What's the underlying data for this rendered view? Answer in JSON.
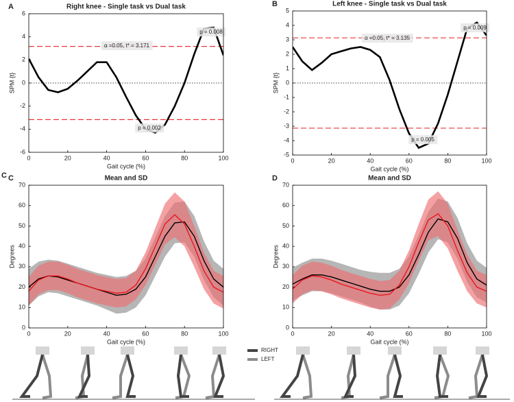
{
  "chart_data": [
    {
      "type": "line",
      "panel_label": "A",
      "title": "Right knee - Single task vs Dual task",
      "x_label": "Gait cycle (%)",
      "y_label": "SPM {t}",
      "x": [
        0,
        5,
        10,
        15,
        20,
        25,
        30,
        35,
        40,
        45,
        50,
        55,
        60,
        65,
        70,
        75,
        80,
        85,
        90,
        95,
        100
      ],
      "series": [
        {
          "color": "#000000",
          "values": [
            2.1,
            0.5,
            -0.6,
            -0.8,
            -0.5,
            0.2,
            1.0,
            1.8,
            1.8,
            0.5,
            -1.2,
            -2.8,
            -4.0,
            -4.3,
            -3.6,
            -2.0,
            0.0,
            2.5,
            4.7,
            4.8,
            2.4
          ]
        }
      ],
      "threshold": 3.171,
      "threshold_color": "#e8373a",
      "zero_line": true,
      "annotations": [
        "α =0.05,    t* = 3.171",
        "p = 0.008",
        "p = 0.002"
      ],
      "xlim": [
        0,
        100
      ],
      "xticks": [
        0,
        20,
        40,
        60,
        80,
        100
      ],
      "ylim": [
        -6,
        6
      ],
      "yticks": [
        -6,
        -4,
        -2,
        0,
        2,
        4,
        6
      ]
    },
    {
      "type": "line",
      "panel_label": "B",
      "title": "Left knee - Single task vs Dual task",
      "x_label": "Gait cycle (%)",
      "y_label": "SPM {t}",
      "x": [
        0,
        5,
        10,
        15,
        20,
        25,
        30,
        35,
        40,
        45,
        50,
        55,
        60,
        65,
        70,
        75,
        80,
        85,
        90,
        95,
        100
      ],
      "series": [
        {
          "color": "#000000",
          "values": [
            2.5,
            1.5,
            0.9,
            1.4,
            2.0,
            2.2,
            2.4,
            2.5,
            2.3,
            1.8,
            0.2,
            -1.8,
            -3.5,
            -4.5,
            -4.2,
            -2.8,
            -0.8,
            1.5,
            3.8,
            4.2,
            3.3
          ]
        }
      ],
      "threshold": 3.135,
      "threshold_color": "#e8373a",
      "zero_line": true,
      "annotations": [
        "α =0.05,    t* = 3.135",
        "p = 0.009",
        "p = 0.005"
      ],
      "xlim": [
        0,
        100
      ],
      "xticks": [
        0,
        20,
        40,
        60,
        80,
        100
      ],
      "ylim": [
        -5,
        5
      ],
      "yticks": [
        -5,
        -4,
        -3,
        -2,
        -1,
        0,
        1,
        2,
        3,
        4,
        5
      ]
    },
    {
      "type": "line",
      "outer_label": "C",
      "panel_label": "C",
      "title": "Mean and SD",
      "x_label": "Gait cycle (%)",
      "y_label": "Degrees",
      "x": [
        0,
        5,
        10,
        15,
        20,
        25,
        30,
        35,
        40,
        45,
        50,
        55,
        60,
        65,
        70,
        75,
        80,
        85,
        90,
        95,
        100
      ],
      "series": [
        {
          "color": "#000000",
          "band_color": "#a9a9a9",
          "values": [
            20,
            24,
            25.5,
            25,
            23.5,
            22,
            20.5,
            19,
            17.5,
            16,
            16.5,
            19,
            25,
            35,
            45,
            51.5,
            52,
            45,
            33,
            24,
            20
          ],
          "sd": [
            9,
            8.5,
            8,
            8,
            8,
            8,
            8,
            8,
            8.5,
            9,
            9,
            9,
            9,
            9.5,
            10,
            10,
            10,
            10,
            9.5,
            9,
            9
          ]
        },
        {
          "color": "#e8171c",
          "band_color": "#ee6f73",
          "values": [
            18,
            23.5,
            25.5,
            25.5,
            24,
            22,
            20.5,
            19,
            18,
            17,
            17.5,
            21,
            29,
            40,
            51,
            55.5,
            51,
            40,
            28,
            20,
            17.5
          ],
          "sd": [
            7,
            7,
            7,
            7,
            7,
            7,
            7,
            7,
            7,
            7,
            7,
            7,
            8,
            9,
            10,
            11,
            11,
            10,
            9,
            8,
            8
          ]
        }
      ],
      "xlim": [
        0,
        100
      ],
      "xticks": [
        0,
        20,
        40,
        60,
        80,
        100
      ],
      "ylim": [
        0,
        70
      ],
      "yticks": [
        0,
        10,
        20,
        30,
        40,
        50,
        60,
        70
      ]
    },
    {
      "type": "line",
      "panel_label": "D",
      "title": "Mean and SD",
      "x_label": "Gait cycle (%)",
      "y_label": "Degrees",
      "x": [
        0,
        5,
        10,
        15,
        20,
        25,
        30,
        35,
        40,
        45,
        50,
        55,
        60,
        65,
        70,
        75,
        80,
        85,
        90,
        95,
        100
      ],
      "series": [
        {
          "color": "#000000",
          "band_color": "#a9a9a9",
          "values": [
            21.5,
            24,
            26,
            26,
            25,
            23.5,
            22,
            20.5,
            19,
            18,
            18,
            20,
            26,
            36,
            47,
            53.5,
            52,
            44,
            32,
            24,
            21
          ],
          "sd": [
            8,
            8,
            8,
            8,
            8,
            8,
            8,
            8,
            8.5,
            9,
            9,
            9,
            9,
            9.5,
            10,
            10,
            10,
            10,
            9.5,
            9,
            8.5
          ]
        },
        {
          "color": "#e8171c",
          "band_color": "#ee6f73",
          "values": [
            19,
            23.5,
            25.5,
            25,
            23.5,
            21.5,
            20,
            18.5,
            17,
            16,
            16.5,
            21,
            30,
            42,
            53,
            56,
            50,
            38,
            27,
            20,
            18
          ],
          "sd": [
            7,
            7,
            7,
            7,
            7,
            7,
            7,
            7,
            7,
            7,
            7,
            7,
            8,
            9,
            10,
            11,
            11,
            10,
            9,
            8,
            8
          ]
        }
      ],
      "xlim": [
        0,
        100
      ],
      "xticks": [
        0,
        20,
        40,
        60,
        80,
        100
      ],
      "ylim": [
        0,
        70
      ],
      "yticks": [
        0,
        10,
        20,
        30,
        40,
        50,
        60,
        70
      ]
    }
  ],
  "figure_legend": [
    {
      "label": "RIGHT",
      "color": "#444444"
    },
    {
      "label": "LEFT",
      "color": "#8c8c8c"
    }
  ]
}
